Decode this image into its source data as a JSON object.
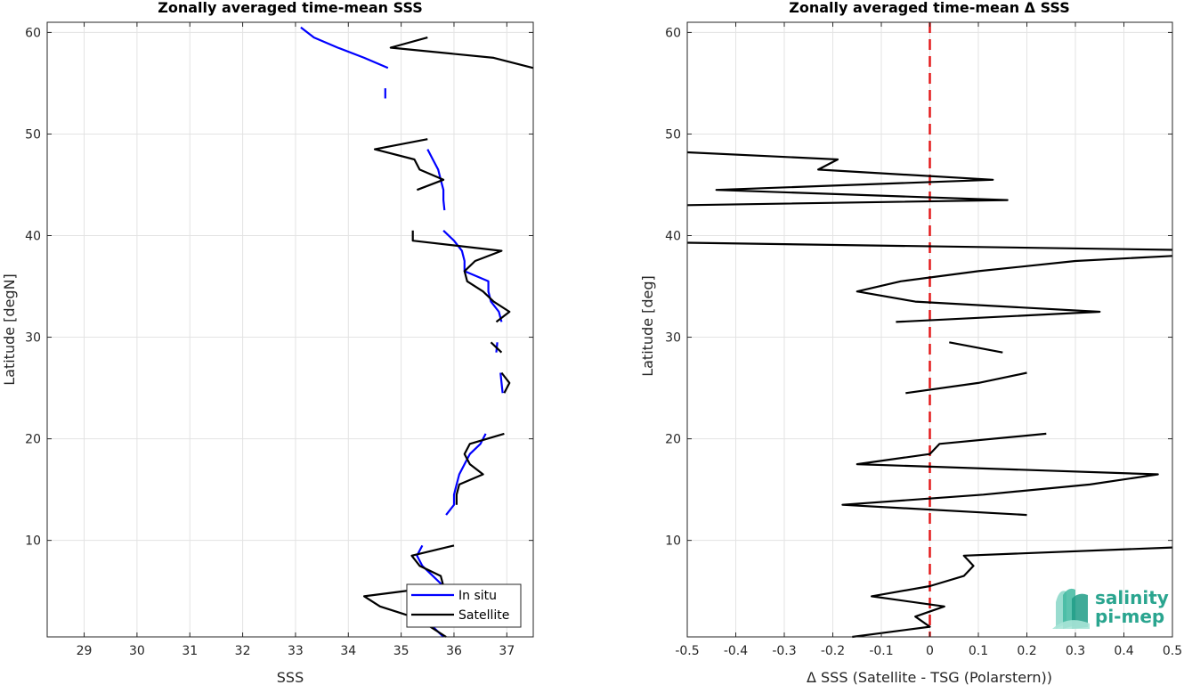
{
  "chart_data": [
    {
      "type": "line",
      "title": "Zonally averaged time-mean SSS",
      "xlabel": "SSS",
      "ylabel": "Latitude [degN]",
      "xlim": [
        28.3,
        37.5
      ],
      "ylim": [
        0.5,
        61
      ],
      "xticks": [
        29,
        30,
        31,
        32,
        33,
        34,
        35,
        36,
        37
      ],
      "yticks": [
        10,
        20,
        30,
        40,
        50,
        60
      ],
      "grid": true,
      "legend": {
        "placement": "bottom-right",
        "entries": [
          "In situ",
          "Satellite"
        ]
      },
      "series": [
        {
          "name": "In situ",
          "color": "#0000ff",
          "segments": [
            [
              [
                33.1,
                60.5
              ],
              [
                33.35,
                59.5
              ],
              [
                33.8,
                58.5
              ],
              [
                34.3,
                57.5
              ],
              [
                34.75,
                56.5
              ]
            ],
            [
              [
                34.7,
                54.5
              ],
              [
                34.7,
                53.5
              ]
            ],
            [
              [
                35.5,
                48.5
              ],
              [
                35.6,
                47.5
              ],
              [
                35.7,
                46.5
              ],
              [
                35.75,
                45.5
              ],
              [
                35.8,
                44.5
              ],
              [
                35.8,
                43.5
              ],
              [
                35.82,
                42.5
              ]
            ],
            [
              [
                35.8,
                40.5
              ],
              [
                36.0,
                39.5
              ],
              [
                36.15,
                38.5
              ],
              [
                36.2,
                37.5
              ],
              [
                36.2,
                36.5
              ],
              [
                36.65,
                35.5
              ],
              [
                36.65,
                34.5
              ],
              [
                36.7,
                33.5
              ],
              [
                36.85,
                32.5
              ],
              [
                36.9,
                31.5
              ]
            ],
            [
              [
                36.82,
                29.5
              ],
              [
                36.8,
                28.5
              ]
            ],
            [
              [
                36.88,
                26.5
              ],
              [
                36.9,
                25.5
              ],
              [
                36.92,
                24.5
              ]
            ],
            [
              [
                36.6,
                20.5
              ],
              [
                36.5,
                19.5
              ],
              [
                36.3,
                18.5
              ],
              [
                36.2,
                17.5
              ],
              [
                36.1,
                16.5
              ],
              [
                36.05,
                15.5
              ],
              [
                36.0,
                14.5
              ],
              [
                36.0,
                13.5
              ],
              [
                35.85,
                12.5
              ]
            ],
            [
              [
                35.4,
                9.5
              ],
              [
                35.3,
                8.5
              ],
              [
                35.4,
                7.5
              ],
              [
                35.6,
                6.5
              ],
              [
                35.8,
                5.5
              ],
              [
                35.6,
                4.5
              ],
              [
                35.3,
                3.5
              ],
              [
                35.25,
                2.5
              ],
              [
                35.6,
                1.5
              ],
              [
                35.8,
                0.5
              ]
            ]
          ]
        },
        {
          "name": "Satellite",
          "color": "#000000",
          "segments": [
            [
              [
                35.5,
                59.5
              ],
              [
                34.8,
                58.5
              ],
              [
                36.75,
                57.5
              ],
              [
                37.5,
                56.5
              ]
            ],
            [
              [
                35.5,
                49.5
              ],
              [
                34.5,
                48.5
              ],
              [
                35.25,
                47.5
              ],
              [
                35.35,
                46.5
              ],
              [
                35.8,
                45.5
              ],
              [
                35.3,
                44.5
              ]
            ],
            [
              [
                35.22,
                40.5
              ],
              [
                35.22,
                39.5
              ],
              [
                36.9,
                38.5
              ],
              [
                36.4,
                37.5
              ],
              [
                36.2,
                36.5
              ],
              [
                36.25,
                35.5
              ],
              [
                36.55,
                34.5
              ],
              [
                36.75,
                33.5
              ],
              [
                37.05,
                32.5
              ],
              [
                36.8,
                31.5
              ]
            ],
            [
              [
                36.7,
                29.5
              ],
              [
                36.9,
                28.5
              ]
            ],
            [
              [
                36.9,
                26.5
              ],
              [
                37.05,
                25.5
              ],
              [
                36.95,
                24.5
              ]
            ],
            [
              [
                36.95,
                20.5
              ],
              [
                36.3,
                19.5
              ],
              [
                36.2,
                18.5
              ],
              [
                36.3,
                17.5
              ],
              [
                36.55,
                16.5
              ],
              [
                36.1,
                15.5
              ],
              [
                36.05,
                14.5
              ],
              [
                36.05,
                13.5
              ]
            ],
            [
              [
                36.0,
                9.5
              ],
              [
                35.2,
                8.5
              ],
              [
                35.35,
                7.5
              ],
              [
                35.75,
                6.5
              ],
              [
                35.8,
                5.5
              ],
              [
                34.3,
                4.5
              ],
              [
                34.6,
                3.5
              ],
              [
                35.2,
                2.5
              ],
              [
                35.55,
                1.5
              ],
              [
                35.85,
                0.5
              ]
            ]
          ]
        }
      ]
    },
    {
      "type": "line",
      "title": "Zonally averaged time-mean Δ SSS",
      "xlabel": "Δ SSS (Satellite - TSG (Polarstern))",
      "ylabel": "Latitude [deg]",
      "xlim": [
        -0.5,
        0.5
      ],
      "ylim": [
        0.5,
        61
      ],
      "xticks": [
        -0.5,
        -0.4,
        -0.3,
        -0.2,
        -0.1,
        0,
        0.1,
        0.2,
        0.3,
        0.4,
        0.5
      ],
      "yticks": [
        10,
        20,
        30,
        40,
        50,
        60
      ],
      "grid": true,
      "reference_line": {
        "x": 0,
        "color": "#e41a1c",
        "style": "dashed"
      },
      "series": [
        {
          "name": "",
          "color": "#000000",
          "segments": [
            [
              [
                -0.5,
                48.2
              ],
              [
                -0.19,
                47.5
              ],
              [
                -0.23,
                46.5
              ],
              [
                0.13,
                45.5
              ],
              [
                -0.44,
                44.5
              ],
              [
                0.16,
                43.5
              ],
              [
                -0.5,
                43.0
              ]
            ],
            [
              [
                -0.5,
                39.3
              ],
              [
                0.5,
                38.6
              ]
            ],
            [
              [
                0.5,
                38.0
              ],
              [
                0.3,
                37.5
              ],
              [
                0.1,
                36.5
              ],
              [
                -0.06,
                35.5
              ],
              [
                -0.15,
                34.5
              ],
              [
                -0.03,
                33.5
              ],
              [
                0.35,
                32.5
              ],
              [
                -0.07,
                31.5
              ]
            ],
            [
              [
                0.04,
                29.5
              ],
              [
                0.15,
                28.5
              ]
            ],
            [
              [
                0.2,
                26.5
              ],
              [
                0.1,
                25.5
              ],
              [
                -0.05,
                24.5
              ]
            ],
            [
              [
                0.24,
                20.5
              ],
              [
                0.02,
                19.5
              ],
              [
                0.0,
                18.5
              ],
              [
                -0.15,
                17.5
              ],
              [
                0.47,
                16.5
              ],
              [
                0.33,
                15.5
              ],
              [
                0.11,
                14.5
              ],
              [
                -0.18,
                13.5
              ],
              [
                0.2,
                12.5
              ]
            ],
            [
              [
                0.5,
                9.3
              ],
              [
                0.07,
                8.5
              ],
              [
                0.09,
                7.5
              ],
              [
                0.07,
                6.5
              ],
              [
                0.0,
                5.5
              ],
              [
                -0.12,
                4.5
              ],
              [
                0.03,
                3.5
              ],
              [
                -0.03,
                2.5
              ],
              [
                0.0,
                1.5
              ],
              [
                -0.16,
                0.5
              ]
            ]
          ]
        }
      ]
    }
  ],
  "logo": {
    "line1": "salinity",
    "line2": "pi-mep",
    "color": "#2aa58f"
  }
}
